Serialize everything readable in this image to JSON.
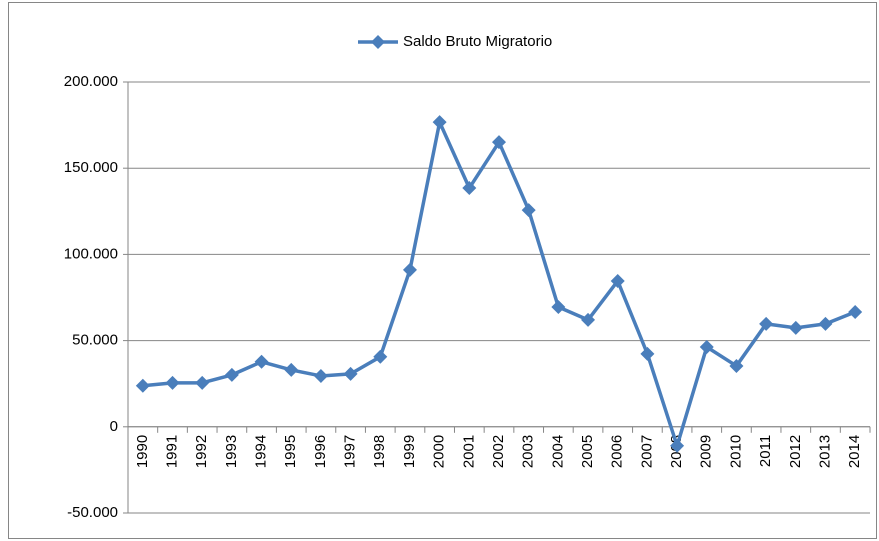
{
  "chart_data": {
    "type": "line",
    "categories": [
      "1990",
      "1991",
      "1992",
      "1993",
      "1994",
      "1995",
      "1996",
      "1997",
      "1998",
      "1999",
      "2000",
      "2001",
      "2002",
      "2003",
      "2004",
      "2005",
      "2006",
      "2007",
      "2008",
      "2009",
      "2010",
      "2011",
      "2012",
      "2013",
      "2014"
    ],
    "series": [
      {
        "name": "Saldo Bruto Migratorio",
        "color": "#4a7ebb",
        "values": [
          23800,
          25500,
          25500,
          30100,
          37700,
          33000,
          29500,
          30700,
          40600,
          91000,
          176700,
          138500,
          165100,
          125700,
          69500,
          62000,
          84600,
          42300,
          -11000,
          46300,
          35300,
          59700,
          57400,
          59700,
          66600
        ]
      }
    ],
    "ylim": [
      -50000,
      200000
    ],
    "yticks": [
      {
        "value": -50000,
        "label": "-50.000"
      },
      0,
      {
        "value": 50000,
        "label": "50.000"
      },
      {
        "value": 100000,
        "label": "100.000"
      },
      {
        "value": 150000,
        "label": "150.000"
      },
      {
        "value": 200000,
        "label": "200.000"
      }
    ],
    "grid": true,
    "legend": "top"
  }
}
